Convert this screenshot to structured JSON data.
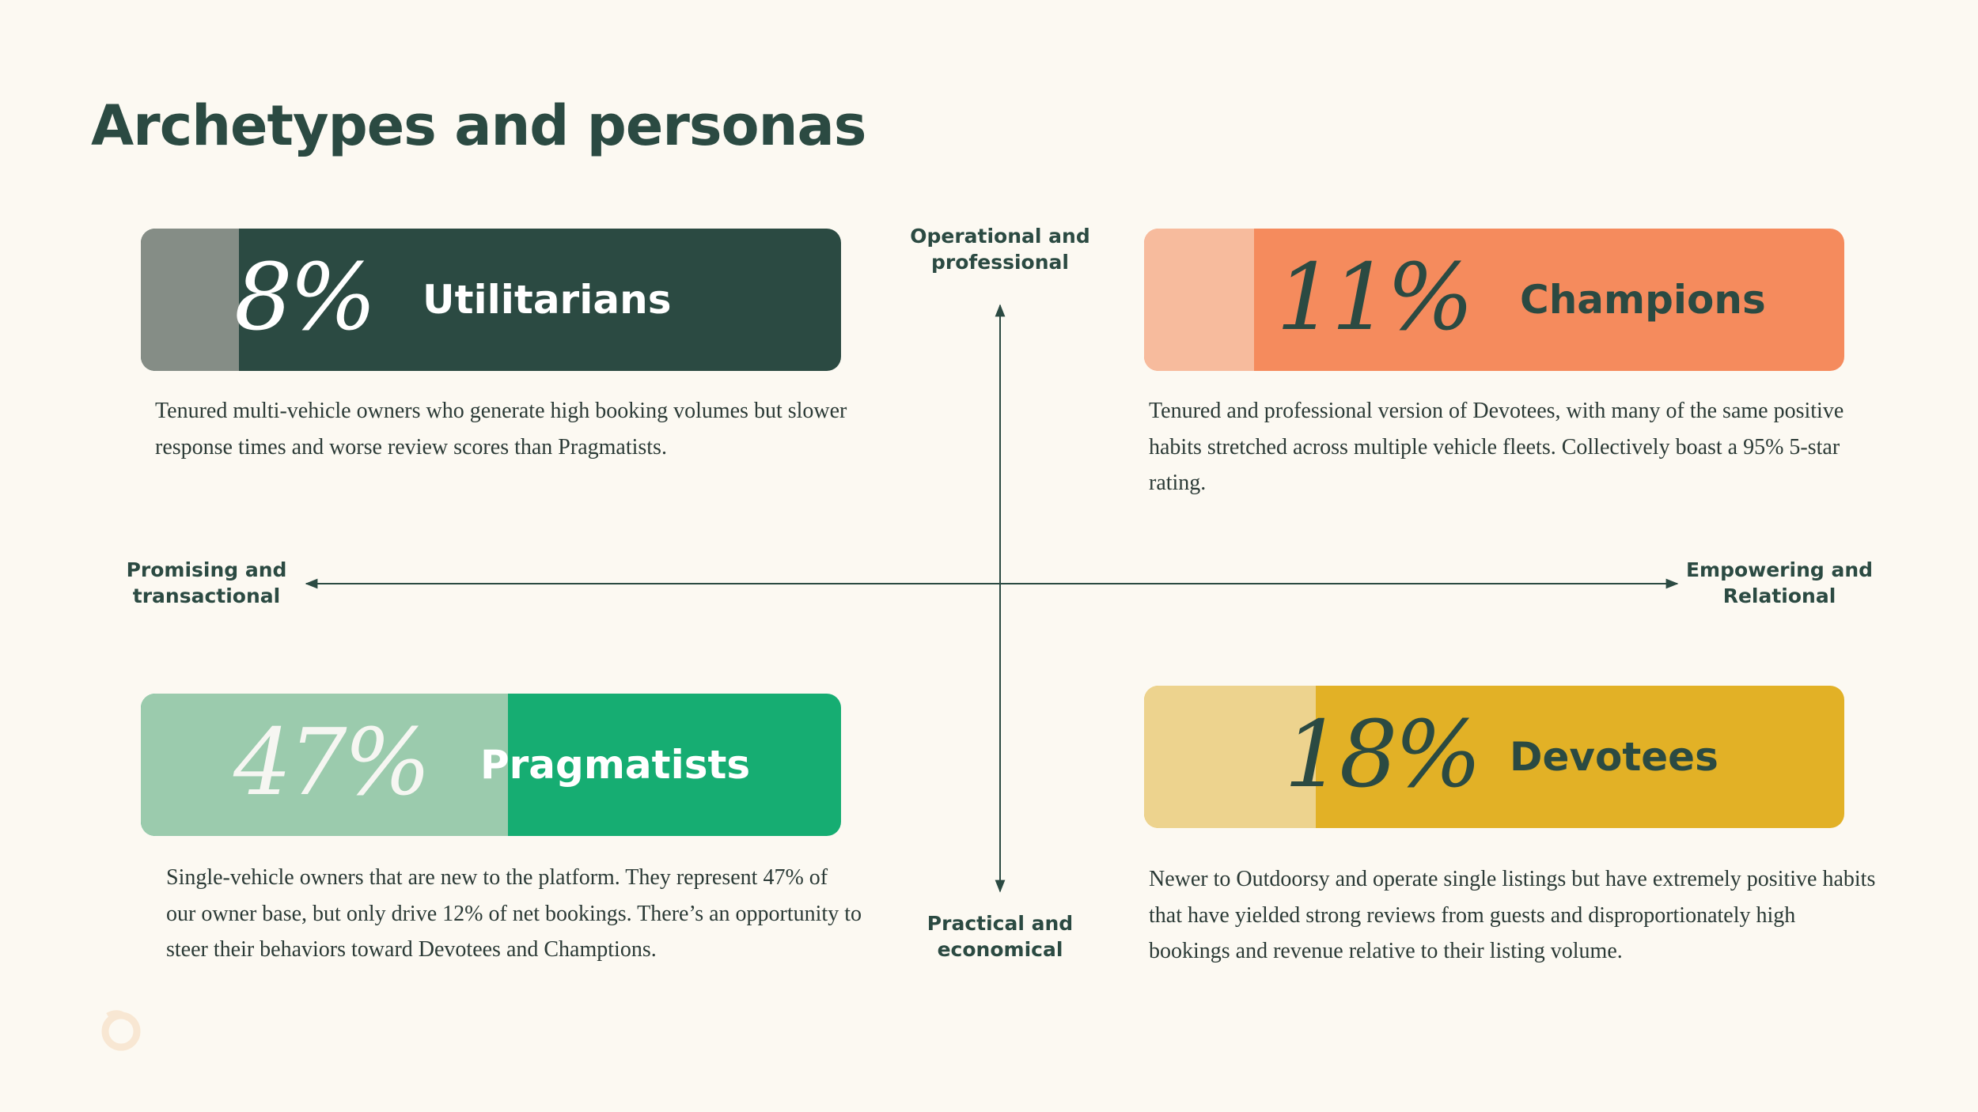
{
  "header": {
    "title": "Archetypes and personas"
  },
  "axes": {
    "top": "Operational and professional",
    "bottom": "Practical and economical",
    "left": "Promising and transactional",
    "right": "Empowering and Relational"
  },
  "personas": [
    {
      "percent": "8%",
      "name": "Utilitarians",
      "description": "Tenured multi-vehicle owners who generate high booking volumes but slower response times and worse review scores than Pragmatists."
    },
    {
      "percent": "11%",
      "name": "Champions",
      "description": "Tenured and professional version of Devotees, with many of the same positive habits stretched across multiple vehicle fleets. Collectively boast a 95% 5-star rating."
    },
    {
      "percent": "47%",
      "name": "Pragmatists",
      "description": "Single-vehicle owners that are new to the platform. They represent 47% of our owner base, but only drive 12% of net bookings. There’s an opportunity to steer their behaviors toward Devotees and Champtions."
    },
    {
      "percent": "18%",
      "name": "Devotees",
      "description": "Newer to Outdoorsy and operate single listings but have extremely positive habits that have yielded strong reviews from guests and disproportionately high bookings and revenue relative to their listing volume."
    }
  ]
}
